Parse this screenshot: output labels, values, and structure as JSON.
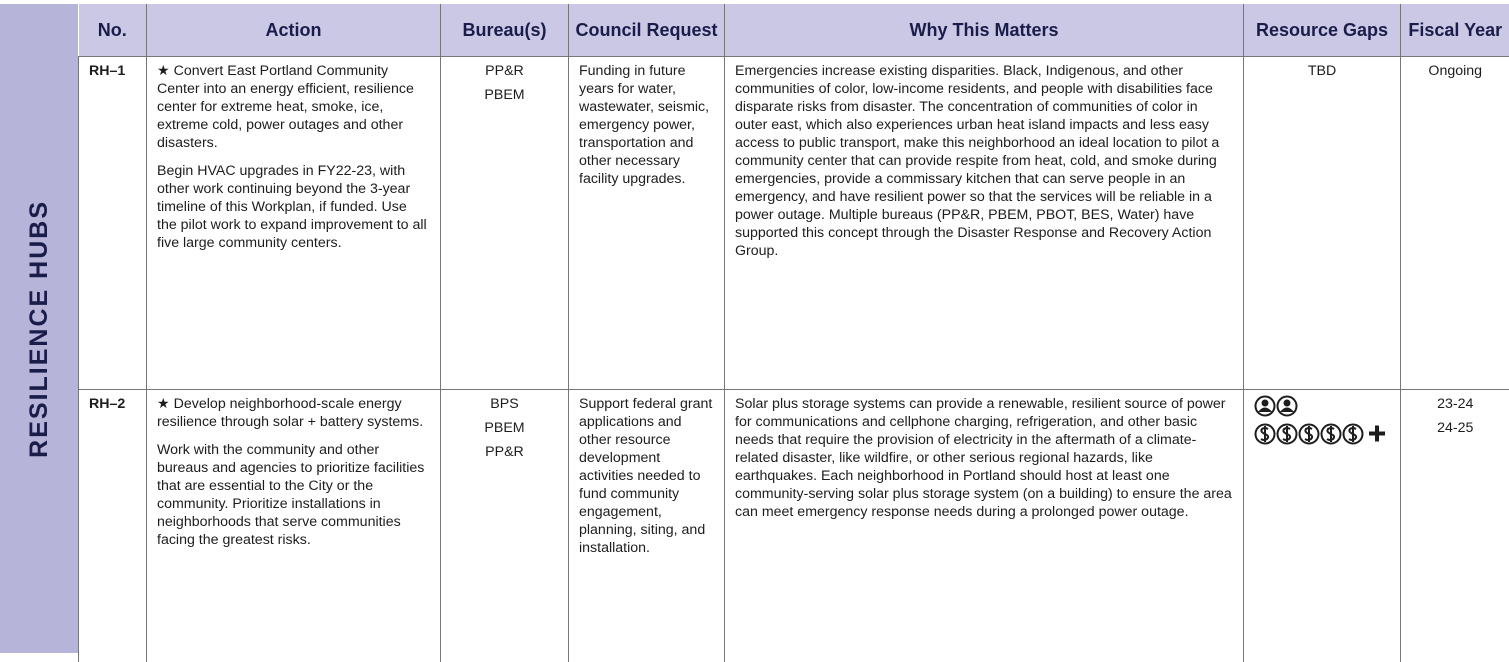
{
  "section": "RESILIENCE HUBS",
  "table": {
    "headers": [
      "No.",
      "Action",
      "Bureau(s)",
      "Council Request",
      "Why This Matters",
      "Resource Gaps",
      "Fiscal Year"
    ],
    "rows": [
      {
        "no": "RH–1",
        "action": [
          "★ Convert East Portland Community Center into an energy efficient, resilience center for extreme heat, smoke, ice, extreme cold, power outages and other disasters.",
          "Begin HVAC upgrades in FY22-23, with other work continuing beyond the 3-year timeline of this Workplan, if funded. Use the pilot work to expand improvement to all five large community centers."
        ],
        "bureaus": [
          "PP&R",
          "PBEM"
        ],
        "council": "Funding in future years for water, wastewater, seismic, emergency power, transportation and other necessary facility upgrades.",
        "why": "Emergencies increase existing disparities. Black, Indigenous, and other communities of color, low-income residents, and people with disabilities face disparate risks from disaster. The concentration of communities of color in outer east, which also experiences urban heat island impacts and less easy access to public transport, make this neighborhood an ideal location to pilot a community center that can provide respite from heat, cold, and smoke during emergencies, provide a commissary kitchen that can serve people in an emergency, and have resilient power so that the services will be reliable in a power outage. Multiple bureaus (PP&R, PBEM, PBOT, BES, Water) have supported this concept through the Disaster Response and Recovery Action Group.",
        "resource_gaps": "TBD",
        "fiscal_year": [
          "Ongoing"
        ]
      },
      {
        "no": "RH–2",
        "action": [
          "★ Develop neighborhood-scale energy resilience through solar + battery systems.",
          "Work with the community and other bureaus and agencies to prioritize facilities that are essential to the City or the community. Prioritize installations in neighborhoods that serve communities facing the greatest risks."
        ],
        "bureaus": [
          "BPS",
          "PBEM",
          "PP&R"
        ],
        "council": "Support federal grant applications and other resource development activities needed to fund community engagement, planning, siting, and installation.",
        "why": "Solar plus storage systems can provide a renewable, resilient source of power for communications and cellphone charging, refrigeration, and other basic needs that require the provision of electricity in the aftermath of a climate-related disaster, like wildfire, or other serious regional hazards, like earthquakes.  Each neighborhood in Portland should host at least one community-serving solar plus storage system (on a building) to ensure the area can meet emergency response needs during a prolonged power outage.",
        "fiscal_year": [
          "23-24",
          "24-25"
        ]
      }
    ]
  }
}
